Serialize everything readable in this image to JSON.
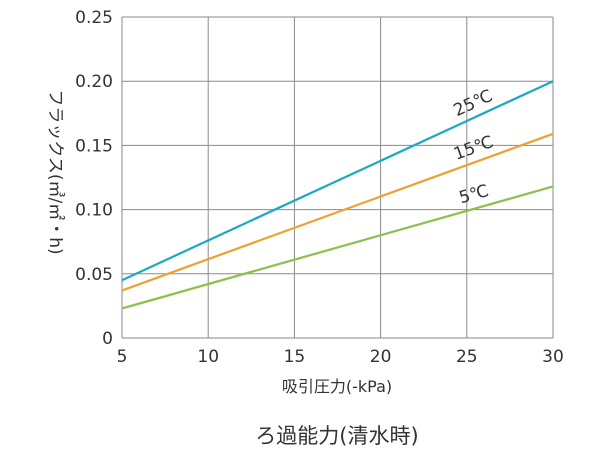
{
  "chart_data": {
    "type": "line",
    "caption": "ろ過能力(清水時)",
    "xlabel": "吸引圧力(-kPa)",
    "ylabel": "フラックス(㎥/㎡・h)",
    "xlim": [
      5,
      30
    ],
    "ylim": [
      0,
      0.25
    ],
    "x_ticks": [
      "5",
      "10",
      "15",
      "20",
      "25",
      "30"
    ],
    "y_ticks": [
      "0",
      "0.05",
      "0.10",
      "0.15",
      "0.20",
      "0.25"
    ],
    "grid": true,
    "series": [
      {
        "name": "25℃",
        "color": "#1aa9c4",
        "x": [
          5,
          30
        ],
        "y": [
          0.045,
          0.2
        ]
      },
      {
        "name": "15℃",
        "color": "#f0a030",
        "x": [
          5,
          30
        ],
        "y": [
          0.037,
          0.159
        ]
      },
      {
        "name": "5℃",
        "color": "#8cc04a",
        "x": [
          5,
          30
        ],
        "y": [
          0.023,
          0.118
        ]
      }
    ]
  }
}
